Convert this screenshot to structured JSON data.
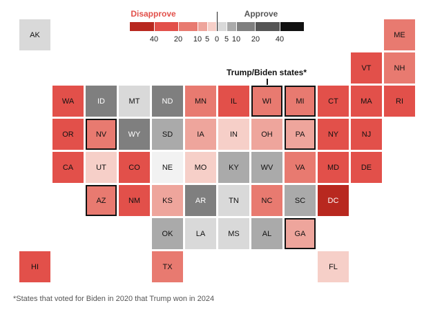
{
  "legend": {
    "disapprove_label": "Disapprove",
    "approve_label": "Approve",
    "disapprove_color": "#e2504a",
    "approve_color": "#555555",
    "buckets": [
      {
        "key": "d40",
        "color": "#b8281f"
      },
      {
        "key": "d20",
        "color": "#e2504a"
      },
      {
        "key": "d10",
        "color": "#e87a70"
      },
      {
        "key": "d5",
        "color": "#eea59c"
      },
      {
        "key": "d0",
        "color": "#f6cfc8"
      },
      {
        "key": "a0",
        "color": "#d9d9d9"
      },
      {
        "key": "a5",
        "color": "#aaaaaa"
      },
      {
        "key": "a10",
        "color": "#7f7f7f"
      },
      {
        "key": "a20",
        "color": "#555555"
      },
      {
        "key": "a40",
        "color": "#111111"
      }
    ],
    "ticks": [
      "40",
      "20",
      "10",
      "5",
      "0",
      "5",
      "10",
      "20",
      "40"
    ],
    "neutral_color": "#f2f2f2"
  },
  "annotation": "Trump/Biden states*",
  "footnote": "*States that voted for Biden in 2020 that Trump won in 2024",
  "states": [
    {
      "abbr": "AK",
      "row": 0,
      "col": 0,
      "bucket": "a0"
    },
    {
      "abbr": "ME",
      "row": 0,
      "col": 11,
      "bucket": "d10"
    },
    {
      "abbr": "VT",
      "row": 1,
      "col": 10,
      "bucket": "d20"
    },
    {
      "abbr": "NH",
      "row": 1,
      "col": 11,
      "bucket": "d10"
    },
    {
      "abbr": "WA",
      "row": 2,
      "col": 1,
      "bucket": "d20"
    },
    {
      "abbr": "ID",
      "row": 2,
      "col": 2,
      "bucket": "a10"
    },
    {
      "abbr": "MT",
      "row": 2,
      "col": 3,
      "bucket": "a0"
    },
    {
      "abbr": "ND",
      "row": 2,
      "col": 4,
      "bucket": "a10"
    },
    {
      "abbr": "MN",
      "row": 2,
      "col": 5,
      "bucket": "d10"
    },
    {
      "abbr": "IL",
      "row": 2,
      "col": 6,
      "bucket": "d20"
    },
    {
      "abbr": "WI",
      "row": 2,
      "col": 7,
      "bucket": "d10",
      "trump_biden": true
    },
    {
      "abbr": "MI",
      "row": 2,
      "col": 8,
      "bucket": "d10",
      "trump_biden": true
    },
    {
      "abbr": "CT",
      "row": 2,
      "col": 9,
      "bucket": "d20"
    },
    {
      "abbr": "MA",
      "row": 2,
      "col": 10,
      "bucket": "d20"
    },
    {
      "abbr": "RI",
      "row": 2,
      "col": 11,
      "bucket": "d20"
    },
    {
      "abbr": "OR",
      "row": 3,
      "col": 1,
      "bucket": "d20"
    },
    {
      "abbr": "NV",
      "row": 3,
      "col": 2,
      "bucket": "d10",
      "trump_biden": true
    },
    {
      "abbr": "WY",
      "row": 3,
      "col": 3,
      "bucket": "a10"
    },
    {
      "abbr": "SD",
      "row": 3,
      "col": 4,
      "bucket": "a5"
    },
    {
      "abbr": "IA",
      "row": 3,
      "col": 5,
      "bucket": "d5"
    },
    {
      "abbr": "IN",
      "row": 3,
      "col": 6,
      "bucket": "d0"
    },
    {
      "abbr": "OH",
      "row": 3,
      "col": 7,
      "bucket": "d5"
    },
    {
      "abbr": "PA",
      "row": 3,
      "col": 8,
      "bucket": "d5",
      "trump_biden": true
    },
    {
      "abbr": "NY",
      "row": 3,
      "col": 9,
      "bucket": "d20"
    },
    {
      "abbr": "NJ",
      "row": 3,
      "col": 10,
      "bucket": "d20"
    },
    {
      "abbr": "CA",
      "row": 4,
      "col": 1,
      "bucket": "d20"
    },
    {
      "abbr": "UT",
      "row": 4,
      "col": 2,
      "bucket": "d0"
    },
    {
      "abbr": "CO",
      "row": 4,
      "col": 3,
      "bucket": "d20"
    },
    {
      "abbr": "NE",
      "row": 4,
      "col": 4,
      "bucket": "neutral"
    },
    {
      "abbr": "MO",
      "row": 4,
      "col": 5,
      "bucket": "d0"
    },
    {
      "abbr": "KY",
      "row": 4,
      "col": 6,
      "bucket": "a5"
    },
    {
      "abbr": "WV",
      "row": 4,
      "col": 7,
      "bucket": "a5"
    },
    {
      "abbr": "VA",
      "row": 4,
      "col": 8,
      "bucket": "d10"
    },
    {
      "abbr": "MD",
      "row": 4,
      "col": 9,
      "bucket": "d20"
    },
    {
      "abbr": "DE",
      "row": 4,
      "col": 10,
      "bucket": "d20"
    },
    {
      "abbr": "AZ",
      "row": 5,
      "col": 2,
      "bucket": "d10",
      "trump_biden": true
    },
    {
      "abbr": "NM",
      "row": 5,
      "col": 3,
      "bucket": "d20"
    },
    {
      "abbr": "KS",
      "row": 5,
      "col": 4,
      "bucket": "d5"
    },
    {
      "abbr": "AR",
      "row": 5,
      "col": 5,
      "bucket": "a10"
    },
    {
      "abbr": "TN",
      "row": 5,
      "col": 6,
      "bucket": "a0"
    },
    {
      "abbr": "NC",
      "row": 5,
      "col": 7,
      "bucket": "d10"
    },
    {
      "abbr": "SC",
      "row": 5,
      "col": 8,
      "bucket": "a5"
    },
    {
      "abbr": "DC",
      "row": 5,
      "col": 9,
      "bucket": "d40"
    },
    {
      "abbr": "OK",
      "row": 6,
      "col": 4,
      "bucket": "a5"
    },
    {
      "abbr": "LA",
      "row": 6,
      "col": 5,
      "bucket": "a0"
    },
    {
      "abbr": "MS",
      "row": 6,
      "col": 6,
      "bucket": "a0"
    },
    {
      "abbr": "AL",
      "row": 6,
      "col": 7,
      "bucket": "a5"
    },
    {
      "abbr": "GA",
      "row": 6,
      "col": 8,
      "bucket": "d5",
      "trump_biden": true
    },
    {
      "abbr": "HI",
      "row": 7,
      "col": 0,
      "bucket": "d20"
    },
    {
      "abbr": "TX",
      "row": 7,
      "col": 4,
      "bucket": "d10"
    },
    {
      "abbr": "FL",
      "row": 7,
      "col": 9,
      "bucket": "d0"
    }
  ]
}
